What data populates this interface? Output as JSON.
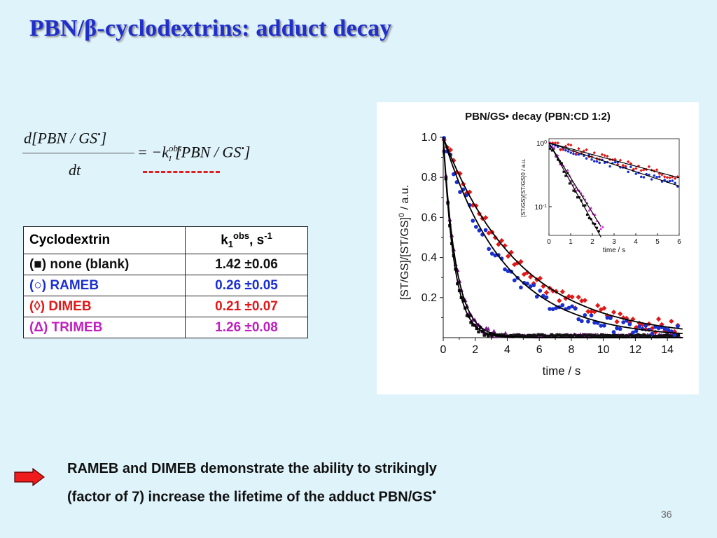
{
  "slide": {
    "title": "PBN/β-cyclodextrins: adduct decay",
    "page_number": "36",
    "conclusion_line1": "RAMEB and DIMEB demonstrate the ability to strikingly",
    "conclusion_line2": "(factor of 7)  increase the lifetime of the adduct PBN/GS",
    "conclusion_dot": "•"
  },
  "equation": {
    "numerator": "d[PBN / GS",
    "denominator": "dt",
    "rhs_prefix": "= −k",
    "k_sup": "obs",
    "k_sub": "I",
    "rhs_body": "[PBN / GS",
    "radical_dot": "•",
    "close": "]"
  },
  "table": {
    "header_col1": "Cyclodextrin",
    "header_k": "k",
    "header_k_sub": "1",
    "header_k_sup": "obs",
    "header_unit": ", s",
    "header_unit_sup": "-1",
    "rows": [
      {
        "label": "(■) none (blank)",
        "value": "1.42   ±0.06",
        "color": "#111111"
      },
      {
        "label": "(○) RAMEB",
        "value": "0.26   ±0.05",
        "color": "#1a2fd0"
      },
      {
        "label": "(◊)  DIMEB",
        "value": "0.21   ±0.07",
        "color": "#e01818"
      },
      {
        "label": "(Δ) TRIMEB",
        "value": "1.26   ±0.08",
        "color": "#c020c0"
      }
    ]
  },
  "chart_data": [
    {
      "type": "scatter",
      "title": "PBN/GS•  decay  (PBN:CD 1:2)",
      "xlabel": "time / s",
      "ylabel": "[ST/GS]/[ST/GS]0 / a.u.",
      "xlim": [
        0,
        15
      ],
      "ylim": [
        0,
        1.0
      ],
      "x_ticks": [
        "0",
        "2",
        "4",
        "6",
        "8",
        "10",
        "12",
        "14"
      ],
      "y_ticks": [
        "0.2",
        "0.4",
        "0.6",
        "0.8",
        "1.0"
      ],
      "series": [
        {
          "color": "#111111",
          "marker": "square",
          "k": 1.42
        },
        {
          "color": "#1a2fd0",
          "marker": "circle",
          "k": 0.26
        },
        {
          "color": "#e01818",
          "marker": "diamond",
          "k": 0.21
        },
        {
          "color": "#7a1a8a",
          "marker": "triangle",
          "k": 1.26
        }
      ]
    },
    {
      "type": "scatter",
      "xlabel": "time / s",
      "ylabel": "[ST/GS]/[ST/GS]0 / a.u.",
      "yscale": "log",
      "xlim": [
        0,
        6
      ],
      "x_ticks": [
        "0",
        "1",
        "2",
        "3",
        "4",
        "5",
        "6"
      ],
      "y_ticks": [
        "10-1",
        "100"
      ],
      "series": [
        {
          "color": "#111111",
          "marker": "square",
          "k": 1.42
        },
        {
          "color": "#1a2fd0",
          "marker": "circle",
          "k": 0.26
        },
        {
          "color": "#e01818",
          "marker": "diamond",
          "k": 0.21
        },
        {
          "color": "#e020e0",
          "marker": "triangle",
          "k": 1.26
        }
      ]
    }
  ]
}
